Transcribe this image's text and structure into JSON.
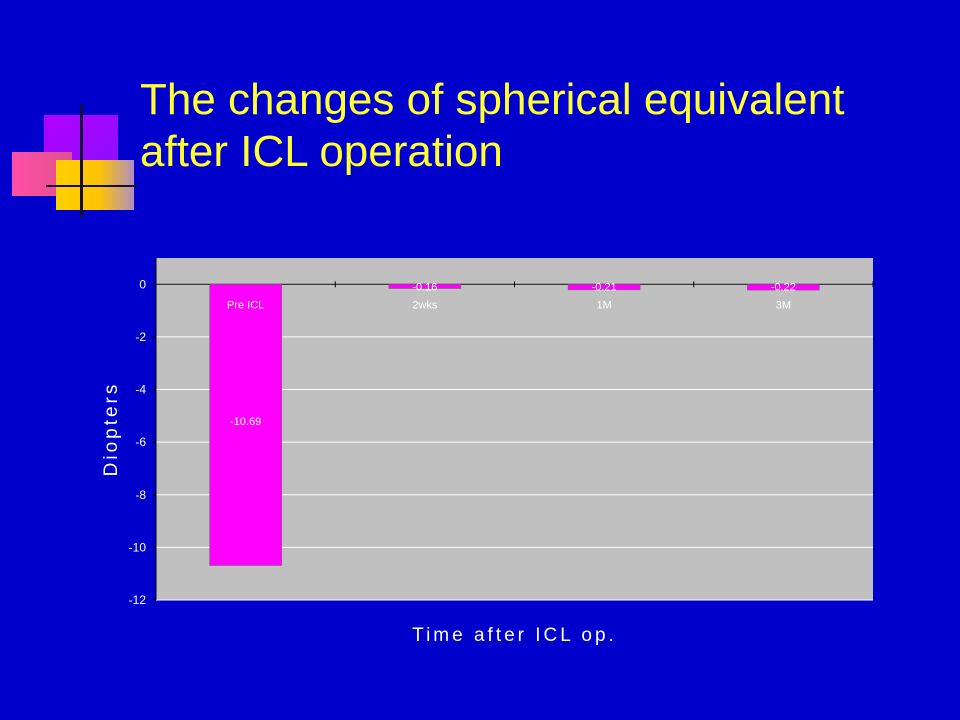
{
  "slide": {
    "title": "The changes of spherical equivalent after ICL operation",
    "colors": {
      "background": "#0000cc",
      "title": "#ffff33",
      "plot_area": "#c0c0c0",
      "bar": "#ff00ff",
      "text": "#ffffff"
    }
  },
  "chart_data": {
    "type": "bar",
    "categories": [
      "Pre ICL",
      "2wks",
      "1M",
      "3M"
    ],
    "values": [
      -10.69,
      -0.16,
      -0.21,
      -0.22
    ],
    "value_labels": [
      "-10.69",
      "-0.16",
      "-0.21",
      "-0.22"
    ],
    "xlabel": "Time after ICL op.",
    "ylabel": "Diopters",
    "ylim": [
      -12,
      1
    ],
    "yticks": [
      0,
      -2,
      -4,
      -6,
      -8,
      -10,
      -12
    ],
    "grid": true,
    "legend": "none"
  }
}
